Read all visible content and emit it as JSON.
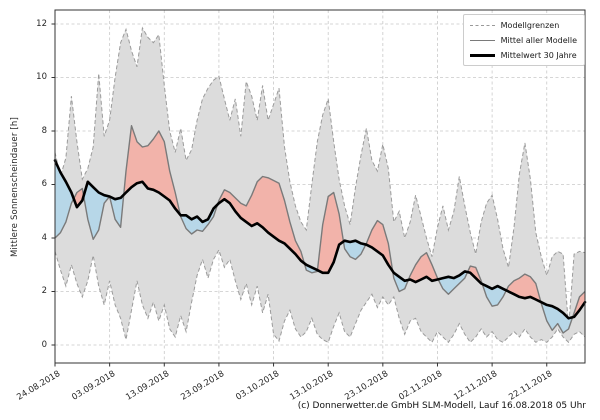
{
  "figure": {
    "y_axis_label": "Mittlere Sonnenscheindauer [h]",
    "caption": "(c) Donnerwetter.de GmbH SLM-Modell, Lauf 16.08.2018 05 Uhr"
  },
  "legend": {
    "items": [
      {
        "label": "Modellgrenzen",
        "style": "dashed-gray"
      },
      {
        "label": "Mittel aller Modelle",
        "style": "solid-gray"
      },
      {
        "label": "Mittelwert 30 Jahre",
        "style": "thick-black"
      }
    ]
  },
  "colors": {
    "band_fill": "#dcdcdc",
    "band_edge": "#9b9b9b",
    "above_fill": "#f2b3aa",
    "below_fill": "#b7d7e8",
    "mean_line": "#7a7a7a",
    "clim_line": "#000000",
    "grid": "#c9c9c9",
    "axis": "#333333"
  },
  "chart_data": {
    "type": "line",
    "title": "",
    "xlabel": "",
    "ylabel": "Mittlere Sonnenscheindauer [h]",
    "ylim": [
      -0.7,
      12.5
    ],
    "y_ticks": [
      0,
      2,
      4,
      6,
      8,
      10,
      12
    ],
    "x_tick_days": [
      0,
      10,
      20,
      30,
      40,
      50,
      60,
      70,
      80,
      90
    ],
    "x_tick_labels": [
      "24.08.2018",
      "03.09.2018",
      "13.09.2018",
      "23.09.2018",
      "03.10.2018",
      "13.10.2018",
      "23.10.2018",
      "02.11.2018",
      "12.11.2018",
      "22.11.2018"
    ],
    "grid": true,
    "legend_position": "upper right",
    "series": [
      {
        "key": "max",
        "name": "Modellgrenzen (oben)",
        "values": [
          7.2,
          6.3,
          7.0,
          9.3,
          7.6,
          6.2,
          6.6,
          7.4,
          10.15,
          7.8,
          8.4,
          10.0,
          11.3,
          11.8,
          11.0,
          10.4,
          11.85,
          11.5,
          11.3,
          11.6,
          9.7,
          8.0,
          7.2,
          8.1,
          6.9,
          7.3,
          8.4,
          9.2,
          9.6,
          9.9,
          10.05,
          9.2,
          8.4,
          9.2,
          7.8,
          9.85,
          9.3,
          8.4,
          9.7,
          8.4,
          9.0,
          9.6,
          7.4,
          6.1,
          5.2,
          4.6,
          4.3,
          6.0,
          7.6,
          8.6,
          9.2,
          7.6,
          6.2,
          5.2,
          4.5,
          5.9,
          7.1,
          8.1,
          6.9,
          6.5,
          7.5,
          6.6,
          4.6,
          5.0,
          4.0,
          4.6,
          5.6,
          4.8,
          4.0,
          3.3,
          4.4,
          5.2,
          4.3,
          5.0,
          6.3,
          5.2,
          4.2,
          3.4,
          4.6,
          5.3,
          5.6,
          4.7,
          3.6,
          2.9,
          4.4,
          6.4,
          7.55,
          6.2,
          4.2,
          3.3,
          2.6,
          3.3,
          3.5,
          3.4,
          0.65,
          3.4,
          3.5,
          3.45
        ]
      },
      {
        "key": "min",
        "name": "Modellgrenzen (unten)",
        "values": [
          3.5,
          2.8,
          2.2,
          3.0,
          2.3,
          1.8,
          2.4,
          3.35,
          2.2,
          1.5,
          2.4,
          1.5,
          1.0,
          0.2,
          1.3,
          2.4,
          1.5,
          1.0,
          1.6,
          0.9,
          1.5,
          0.6,
          0.3,
          1.1,
          0.5,
          1.6,
          2.6,
          3.2,
          2.5,
          3.2,
          3.55,
          2.9,
          3.2,
          2.4,
          1.7,
          2.3,
          1.5,
          2.2,
          1.2,
          1.9,
          0.4,
          0.15,
          0.9,
          1.3,
          0.6,
          0.3,
          0.5,
          1.0,
          0.4,
          0.2,
          0.1,
          0.7,
          1.2,
          0.5,
          0.3,
          0.8,
          1.3,
          1.6,
          1.9,
          1.4,
          1.8,
          1.5,
          1.8,
          1.0,
          0.4,
          0.9,
          1.0,
          0.5,
          0.3,
          0.1,
          0.5,
          0.3,
          0.1,
          0.4,
          0.8,
          0.4,
          0.1,
          0.3,
          0.6,
          0.3,
          0.5,
          0.2,
          0.1,
          0.3,
          0.5,
          0.3,
          0.6,
          0.3,
          0.1,
          0.2,
          0.1,
          0.3,
          0.6,
          0.3,
          0.1,
          0.4,
          0.5,
          0.3
        ]
      },
      {
        "key": "mean",
        "name": "Mittel aller Modelle",
        "values": [
          4.0,
          4.2,
          4.6,
          5.3,
          5.7,
          5.85,
          4.7,
          3.95,
          4.3,
          5.3,
          5.55,
          4.7,
          4.4,
          6.5,
          8.2,
          7.6,
          7.4,
          7.45,
          7.7,
          8.0,
          7.6,
          6.5,
          5.7,
          4.8,
          4.35,
          4.15,
          4.3,
          4.25,
          4.5,
          4.8,
          5.4,
          5.8,
          5.7,
          5.5,
          5.3,
          5.2,
          5.6,
          6.1,
          6.3,
          6.25,
          6.15,
          6.05,
          5.4,
          4.6,
          3.9,
          3.5,
          2.8,
          2.7,
          2.75,
          4.5,
          5.55,
          5.7,
          4.9,
          3.6,
          3.3,
          3.2,
          3.4,
          3.8,
          4.3,
          4.65,
          4.5,
          3.8,
          2.5,
          2.0,
          2.1,
          2.6,
          3.0,
          3.3,
          3.45,
          3.0,
          2.5,
          2.1,
          1.9,
          2.1,
          2.3,
          2.5,
          2.95,
          2.9,
          2.4,
          1.8,
          1.45,
          1.5,
          1.8,
          2.2,
          2.4,
          2.5,
          2.65,
          2.55,
          2.3,
          1.55,
          0.9,
          0.55,
          0.8,
          0.45,
          0.6,
          1.2,
          1.8,
          2.0
        ]
      },
      {
        "key": "clim",
        "name": "Mittelwert 30 Jahre",
        "values": [
          6.9,
          6.45,
          6.1,
          5.7,
          5.15,
          5.4,
          6.1,
          5.9,
          5.7,
          5.6,
          5.55,
          5.45,
          5.5,
          5.7,
          5.9,
          6.05,
          6.1,
          5.85,
          5.8,
          5.7,
          5.55,
          5.4,
          5.1,
          4.85,
          4.85,
          4.7,
          4.8,
          4.6,
          4.7,
          5.1,
          5.3,
          5.45,
          5.3,
          5.0,
          4.75,
          4.6,
          4.45,
          4.55,
          4.4,
          4.2,
          4.05,
          3.9,
          3.8,
          3.6,
          3.4,
          3.15,
          3.0,
          2.9,
          2.8,
          2.7,
          2.7,
          3.1,
          3.75,
          3.9,
          3.85,
          3.9,
          3.8,
          3.75,
          3.65,
          3.5,
          3.35,
          3.0,
          2.7,
          2.55,
          2.4,
          2.45,
          2.35,
          2.45,
          2.55,
          2.4,
          2.45,
          2.5,
          2.55,
          2.5,
          2.6,
          2.75,
          2.7,
          2.5,
          2.3,
          2.2,
          2.1,
          2.2,
          2.1,
          2.0,
          1.9,
          1.8,
          1.75,
          1.8,
          1.7,
          1.6,
          1.5,
          1.45,
          1.35,
          1.2,
          1.0,
          1.05,
          1.3,
          1.6
        ]
      }
    ],
    "fills": [
      {
        "between": [
          "max",
          "min"
        ],
        "color_key": "band_fill",
        "meaning": "Modellgrenzen Band"
      },
      {
        "where": "mean > clim",
        "color_key": "above_fill"
      },
      {
        "where": "mean < clim",
        "color_key": "below_fill"
      }
    ]
  }
}
